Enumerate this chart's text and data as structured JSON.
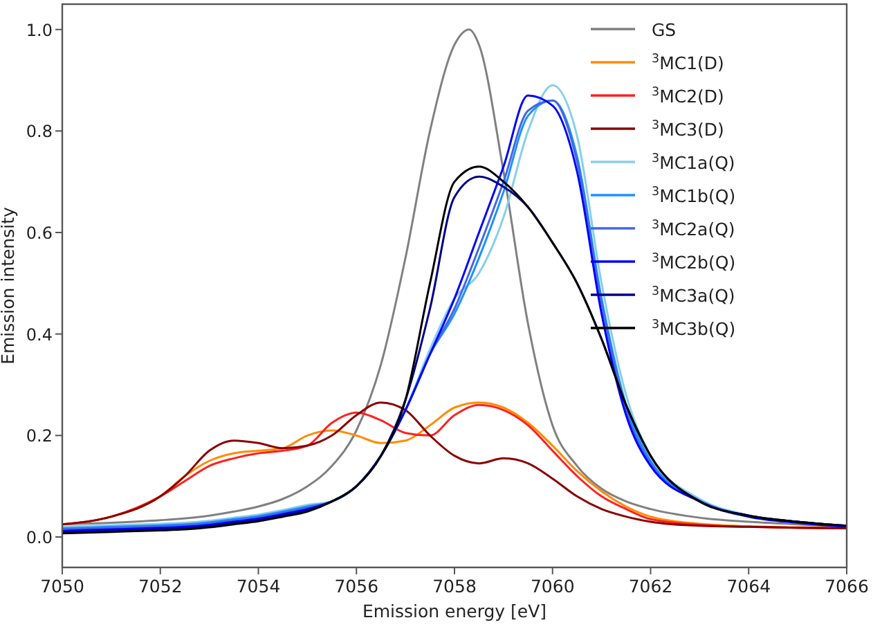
{
  "chart_data": {
    "type": "line",
    "xlabel": "Emission energy [eV]",
    "ylabel": "Emission intensity",
    "x": [
      7050,
      7051,
      7052,
      7052.5,
      7053,
      7053.5,
      7054,
      7054.5,
      7055,
      7055.5,
      7056,
      7056.5,
      7057,
      7057.5,
      7058,
      7058.5,
      7059,
      7059.5,
      7060,
      7060.5,
      7061,
      7061.5,
      7062,
      7063,
      7064,
      7065,
      7066
    ],
    "xlim": [
      7050,
      7066
    ],
    "xticks": [
      7050,
      7052,
      7054,
      7056,
      7058,
      7060,
      7062,
      7064,
      7066
    ],
    "ylim": [
      -0.06,
      1.05
    ],
    "yticks": [
      {
        "value": 0,
        "label": "0.0"
      },
      {
        "value": 0.2,
        "label": "0.2"
      },
      {
        "value": 0.4,
        "label": "0.4"
      },
      {
        "value": 0.6,
        "label": "0.6"
      },
      {
        "value": 0.8,
        "label": "0.8"
      },
      {
        "value": 1,
        "label": "1.0"
      }
    ],
    "grid": false,
    "legend": "top right",
    "marker": "none",
    "line_style": "solid",
    "series": [
      {
        "name": "GS",
        "color": "#808080",
        "x": [
          7050,
          7051,
          7052,
          7053,
          7053.5,
          7054,
          7054.5,
          7055,
          7055.5,
          7056,
          7056.5,
          7057,
          7057.5,
          7058,
          7058.3,
          7058.5,
          7059,
          7059.5,
          7060,
          7060.5,
          7061,
          7061.5,
          7062,
          7063,
          7064,
          7065,
          7066
        ],
        "values": [
          0.025,
          0.028,
          0.033,
          0.042,
          0.05,
          0.06,
          0.075,
          0.1,
          0.14,
          0.21,
          0.34,
          0.55,
          0.8,
          0.97,
          1.0,
          0.97,
          0.72,
          0.42,
          0.22,
          0.14,
          0.095,
          0.07,
          0.055,
          0.038,
          0.03,
          0.025,
          0.02
        ]
      },
      {
        "name": "$^{3}$MC1(D)",
        "color": "#ff8c00",
        "values": [
          0.025,
          0.04,
          0.08,
          0.12,
          0.15,
          0.165,
          0.17,
          0.175,
          0.2,
          0.21,
          0.2,
          0.185,
          0.19,
          0.22,
          0.255,
          0.265,
          0.255,
          0.225,
          0.18,
          0.13,
          0.09,
          0.06,
          0.04,
          0.026,
          0.021,
          0.019,
          0.018
        ]
      },
      {
        "name": "$^{3}$MC2(D)",
        "color": "#ff2020",
        "values": [
          0.025,
          0.04,
          0.08,
          0.11,
          0.14,
          0.155,
          0.165,
          0.17,
          0.18,
          0.225,
          0.245,
          0.23,
          0.205,
          0.2,
          0.24,
          0.26,
          0.25,
          0.22,
          0.17,
          0.12,
          0.08,
          0.055,
          0.035,
          0.024,
          0.02,
          0.018,
          0.017
        ]
      },
      {
        "name": "$^{3}$MC3(D)",
        "color": "#8b0000",
        "values": [
          0.025,
          0.04,
          0.08,
          0.12,
          0.17,
          0.19,
          0.185,
          0.175,
          0.18,
          0.2,
          0.24,
          0.265,
          0.25,
          0.2,
          0.16,
          0.145,
          0.155,
          0.145,
          0.115,
          0.08,
          0.055,
          0.04,
          0.03,
          0.022,
          0.02,
          0.018,
          0.017
        ]
      },
      {
        "name": "$^{3}$MC1a(Q)",
        "color": "#87ceeb",
        "values": [
          0.02,
          0.023,
          0.026,
          0.028,
          0.032,
          0.038,
          0.044,
          0.053,
          0.063,
          0.07,
          0.1,
          0.16,
          0.25,
          0.37,
          0.47,
          0.52,
          0.63,
          0.8,
          0.89,
          0.79,
          0.5,
          0.28,
          0.16,
          0.075,
          0.043,
          0.03,
          0.022
        ]
      },
      {
        "name": "$^{3}$MC1b(Q)",
        "color": "#1e90ff",
        "values": [
          0.017,
          0.02,
          0.023,
          0.025,
          0.029,
          0.035,
          0.041,
          0.05,
          0.06,
          0.07,
          0.1,
          0.16,
          0.25,
          0.36,
          0.44,
          0.55,
          0.68,
          0.83,
          0.86,
          0.75,
          0.47,
          0.26,
          0.15,
          0.072,
          0.042,
          0.03,
          0.022
        ]
      },
      {
        "name": "$^{3}$MC2a(Q)",
        "color": "#4169e1",
        "values": [
          0.015,
          0.018,
          0.021,
          0.023,
          0.027,
          0.033,
          0.039,
          0.048,
          0.058,
          0.07,
          0.1,
          0.16,
          0.25,
          0.36,
          0.45,
          0.57,
          0.7,
          0.84,
          0.86,
          0.74,
          0.46,
          0.25,
          0.145,
          0.07,
          0.041,
          0.029,
          0.021
        ]
      },
      {
        "name": "$^{3}$MC2b(Q)",
        "color": "#0000ff",
        "values": [
          0.012,
          0.015,
          0.018,
          0.02,
          0.024,
          0.03,
          0.036,
          0.045,
          0.055,
          0.07,
          0.1,
          0.16,
          0.25,
          0.36,
          0.47,
          0.6,
          0.73,
          0.87,
          0.85,
          0.72,
          0.44,
          0.24,
          0.14,
          0.07,
          0.04,
          0.028,
          0.02
        ]
      },
      {
        "name": "$^{3}$MC3a(Q)",
        "color": "#00008b",
        "values": [
          0.009,
          0.012,
          0.015,
          0.017,
          0.021,
          0.027,
          0.033,
          0.042,
          0.052,
          0.07,
          0.1,
          0.16,
          0.27,
          0.45,
          0.67,
          0.71,
          0.69,
          0.65,
          0.58,
          0.5,
          0.39,
          0.26,
          0.16,
          0.07,
          0.042,
          0.03,
          0.022
        ]
      },
      {
        "name": "$^{3}$MC3b(Q)",
        "color": "#000000",
        "values": [
          0.007,
          0.01,
          0.013,
          0.015,
          0.019,
          0.025,
          0.031,
          0.04,
          0.05,
          0.07,
          0.1,
          0.16,
          0.27,
          0.5,
          0.7,
          0.73,
          0.7,
          0.65,
          0.58,
          0.5,
          0.39,
          0.26,
          0.16,
          0.07,
          0.042,
          0.03,
          0.022
        ]
      }
    ]
  }
}
